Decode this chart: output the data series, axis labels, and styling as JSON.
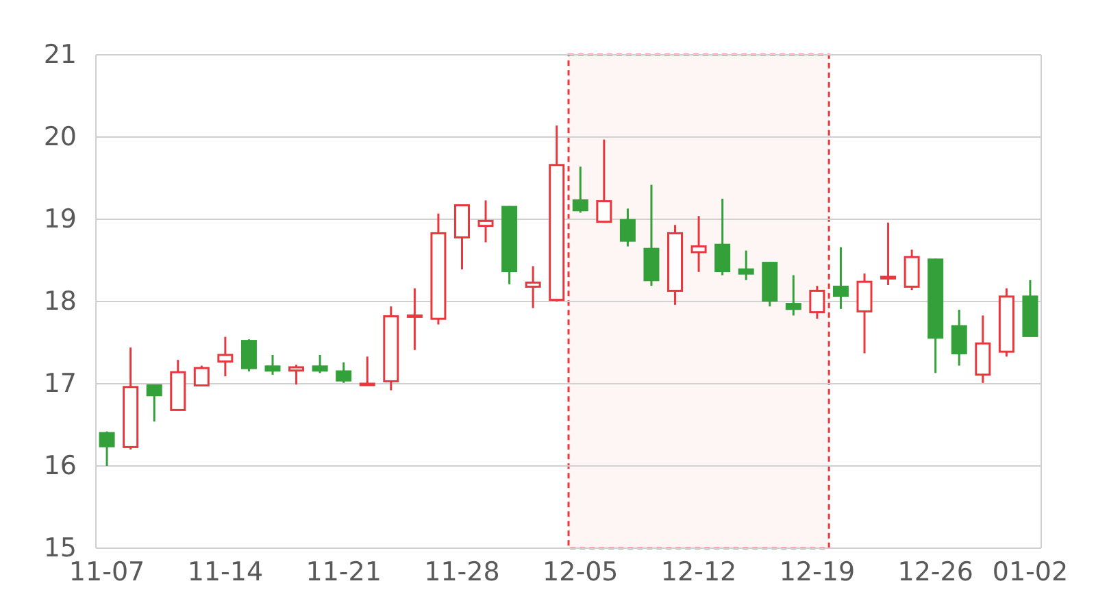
{
  "chart_data": {
    "type": "candlestick",
    "categories": [
      "11-07",
      null,
      null,
      null,
      null,
      "11-14",
      null,
      null,
      null,
      null,
      "11-21",
      null,
      null,
      null,
      null,
      "11-28",
      null,
      null,
      null,
      null,
      "12-05",
      null,
      null,
      null,
      null,
      "12-12",
      null,
      null,
      null,
      null,
      "12-19",
      null,
      null,
      null,
      null,
      "12-26",
      null,
      null,
      null,
      "01-02"
    ],
    "ohlc": [
      [
        16.4,
        16.42,
        16.0,
        16.24
      ],
      [
        16.23,
        17.44,
        16.2,
        16.96
      ],
      [
        16.98,
        16.98,
        16.54,
        16.86
      ],
      [
        16.68,
        17.29,
        16.68,
        17.14
      ],
      [
        16.98,
        17.22,
        16.98,
        17.19
      ],
      [
        17.27,
        17.57,
        17.09,
        17.35
      ],
      [
        17.52,
        17.54,
        17.15,
        17.19
      ],
      [
        17.21,
        17.35,
        17.11,
        17.16
      ],
      [
        17.16,
        17.23,
        16.99,
        17.2
      ],
      [
        17.21,
        17.35,
        17.13,
        17.16
      ],
      [
        17.15,
        17.26,
        17.01,
        17.04
      ],
      [
        16.99,
        17.33,
        16.99,
        17.0
      ],
      [
        17.03,
        17.94,
        16.92,
        17.82
      ],
      [
        17.82,
        18.16,
        17.41,
        17.83
      ],
      [
        17.79,
        19.07,
        17.72,
        18.83
      ],
      [
        18.78,
        19.17,
        18.39,
        19.17
      ],
      [
        18.92,
        19.23,
        18.72,
        18.98
      ],
      [
        19.15,
        19.16,
        18.21,
        18.37
      ],
      [
        18.18,
        18.43,
        17.92,
        18.23
      ],
      [
        18.02,
        20.14,
        18.0,
        19.66
      ],
      [
        19.23,
        19.64,
        19.08,
        19.11
      ],
      [
        18.97,
        19.97,
        18.97,
        19.22
      ],
      [
        18.99,
        19.13,
        18.67,
        18.74
      ],
      [
        18.64,
        19.42,
        18.19,
        18.26
      ],
      [
        18.13,
        18.93,
        17.96,
        18.83
      ],
      [
        18.6,
        19.04,
        18.36,
        18.67
      ],
      [
        18.69,
        19.25,
        18.32,
        18.37
      ],
      [
        18.39,
        18.62,
        18.26,
        18.34
      ],
      [
        18.47,
        18.48,
        17.94,
        18.01
      ],
      [
        17.97,
        18.32,
        17.83,
        17.91
      ],
      [
        17.87,
        18.19,
        17.79,
        18.13
      ],
      [
        18.18,
        18.66,
        17.91,
        18.07
      ],
      [
        17.88,
        18.34,
        17.37,
        18.24
      ],
      [
        18.28,
        18.96,
        18.2,
        18.3
      ],
      [
        18.18,
        18.63,
        18.14,
        18.54
      ],
      [
        18.51,
        18.52,
        17.13,
        17.56
      ],
      [
        17.7,
        17.9,
        17.22,
        17.37
      ],
      [
        17.11,
        17.83,
        17.01,
        17.49
      ],
      [
        17.39,
        18.16,
        17.33,
        18.06
      ],
      [
        18.06,
        18.26,
        17.58,
        17.58
      ]
    ],
    "colors": [
      "#34a03a",
      "#e8383d",
      "#34a03a",
      "#e8383d",
      "#e8383d",
      "#e8383d",
      "#34a03a",
      "#34a03a",
      "#e8383d",
      "#34a03a",
      "#34a03a",
      "#e8383d",
      "#e8383d",
      "#e8383d",
      "#e8383d",
      "#e8383d",
      "#e8383d",
      "#34a03a",
      "#e8383d",
      "#e8383d",
      "#34a03a",
      "#e8383d",
      "#34a03a",
      "#34a03a",
      "#e8383d",
      "#e8383d",
      "#34a03a",
      "#34a03a",
      "#34a03a",
      "#34a03a",
      "#e8383d",
      "#34a03a",
      "#e8383d",
      "#e8383d",
      "#e8383d",
      "#34a03a",
      "#34a03a",
      "#e8383d",
      "#e8383d",
      "#34a03a"
    ],
    "ylim": [
      15,
      21
    ],
    "yticks": [
      15,
      16,
      17,
      18,
      19,
      20,
      21
    ],
    "grid": "y",
    "bands": [
      {
        "axis": "x",
        "from": "12-05",
        "to": "12-19",
        "color": "#e8383d"
      }
    ]
  }
}
